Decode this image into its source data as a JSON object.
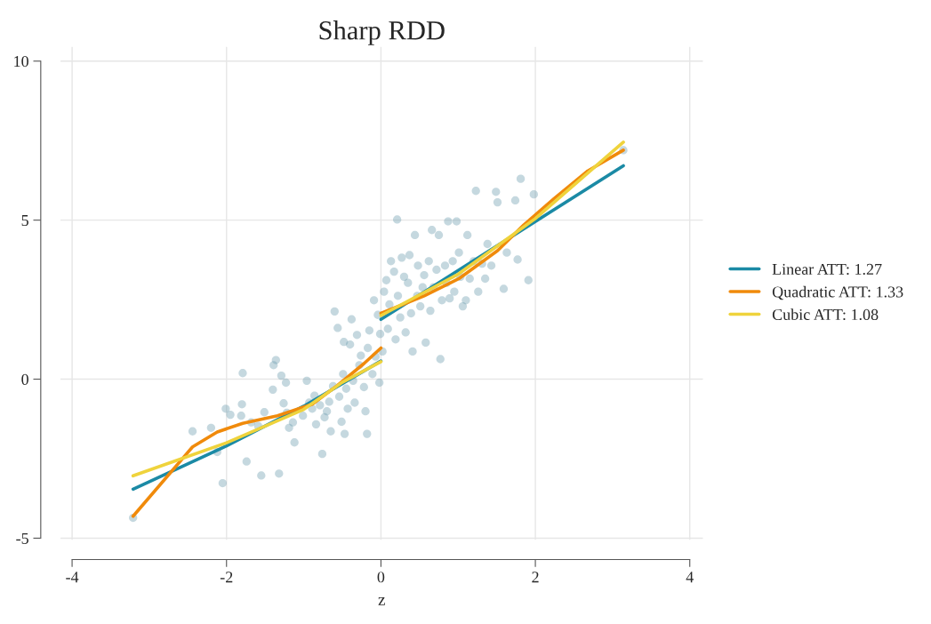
{
  "chart_data": {
    "type": "scatter",
    "title": "Sharp RDD",
    "xlabel": "z",
    "xlim": [
      -4.15,
      4.17
    ],
    "ylim": [
      -5.05,
      10.45
    ],
    "xticks": [
      -4,
      -2,
      0,
      2,
      4
    ],
    "yticks": [
      -5,
      0,
      5,
      10
    ],
    "grid": true,
    "legend": "right",
    "series": [
      {
        "color": "#6f9db0",
        "marker": "circle",
        "x": [
          -3.21,
          -2.44,
          -2.2,
          -2.12,
          -2.05,
          -2.01,
          -1.95,
          -1.81,
          -1.8,
          -1.79,
          -1.74,
          -1.68,
          -1.59,
          -1.55,
          -1.51,
          -1.4,
          -1.39,
          -1.36,
          -1.32,
          -1.29,
          -1.23,
          -1.26,
          -1.22,
          -1.19,
          -1.14,
          -1.12,
          -1.01,
          -0.96,
          -0.93,
          -0.89,
          -0.86,
          -0.84,
          -0.79,
          -0.76,
          -0.73,
          -0.7,
          -0.67,
          -0.65,
          -0.62,
          -0.6,
          -0.56,
          -0.54,
          -0.51,
          -0.49,
          -0.48,
          -0.47,
          -0.45,
          -0.43,
          -0.4,
          -0.38,
          -0.36,
          -0.34,
          -0.31,
          -0.28,
          -0.26,
          -0.22,
          -0.2,
          -0.18,
          -0.17,
          -0.15,
          -0.11,
          -0.09,
          -0.07,
          -0.04,
          -0.02,
          -0.01,
          0.02,
          0.04,
          0.07,
          0.09,
          0.11,
          0.13,
          0.17,
          0.19,
          0.21,
          0.22,
          0.25,
          0.27,
          0.3,
          0.32,
          0.35,
          0.37,
          0.39,
          0.41,
          0.44,
          0.47,
          0.48,
          0.51,
          0.54,
          0.56,
          0.58,
          0.62,
          0.64,
          0.66,
          0.68,
          0.72,
          0.75,
          0.77,
          0.79,
          0.83,
          0.85,
          0.87,
          0.89,
          0.93,
          0.95,
          0.98,
          1.01,
          1.03,
          1.06,
          1.1,
          1.12,
          1.15,
          1.2,
          1.23,
          1.26,
          1.31,
          1.35,
          1.38,
          1.43,
          1.49,
          1.51,
          1.59,
          1.63,
          1.74,
          1.77,
          1.81,
          1.91,
          1.98,
          3.14
        ],
        "values": [
          -4.36,
          -1.64,
          -1.53,
          -2.29,
          -3.27,
          -0.93,
          -1.12,
          -1.15,
          -0.79,
          0.19,
          -2.59,
          -1.36,
          -1.47,
          -3.03,
          -1.04,
          -0.33,
          0.44,
          0.6,
          -2.97,
          0.11,
          -0.11,
          -0.76,
          -1.06,
          -1.53,
          -1.36,
          -1.99,
          -1.15,
          -0.05,
          -0.74,
          -0.93,
          -0.52,
          -1.42,
          -0.82,
          -2.35,
          -1.2,
          -1.01,
          -0.71,
          -1.64,
          -0.22,
          2.13,
          1.61,
          -0.55,
          -1.34,
          0.16,
          1.17,
          -1.72,
          -0.3,
          -0.93,
          1.09,
          1.88,
          -0.05,
          -0.74,
          1.39,
          0.44,
          0.74,
          -0.25,
          -1.01,
          -1.72,
          0.98,
          1.53,
          0.16,
          2.48,
          0.71,
          2.02,
          -0.11,
          1.42,
          0.87,
          2.75,
          3.11,
          1.58,
          2.35,
          3.71,
          3.38,
          1.25,
          5.02,
          2.62,
          1.94,
          3.82,
          3.22,
          1.47,
          3.03,
          3.9,
          2.07,
          0.87,
          4.53,
          2.62,
          3.57,
          2.29,
          2.89,
          3.27,
          1.15,
          3.71,
          2.15,
          4.69,
          2.89,
          3.44,
          4.53,
          0.63,
          2.48,
          3.57,
          3.03,
          4.96,
          2.54,
          3.71,
          2.75,
          4.96,
          3.98,
          3.22,
          2.29,
          2.48,
          4.53,
          3.16,
          3.71,
          5.92,
          2.75,
          3.63,
          3.16,
          4.25,
          3.57,
          5.89,
          5.56,
          2.84,
          3.98,
          5.62,
          3.76,
          6.3,
          3.11,
          5.81,
          7.2
        ]
      },
      {
        "type": "line",
        "name": "Linear ATT: 1.27",
        "color": "#1b8aa5",
        "x": [
          -3.21,
          -2,
          -1,
          0,
          null,
          0,
          3.14
        ],
        "values": [
          -3.46,
          -2.1,
          -0.85,
          0.57,
          null,
          1.88,
          6.71
        ]
      },
      {
        "type": "line",
        "name": "Quadratic ATT: 1.33",
        "color": "#f08a0b",
        "x": [
          -3.21,
          -2.44,
          -2.12,
          -1.79,
          -1.34,
          -0.89,
          -0.56,
          -0.22,
          0,
          null,
          0,
          0.56,
          1.01,
          1.51,
          1.85,
          2.24,
          2.68,
          3.14
        ],
        "values": [
          -4.31,
          -2.13,
          -1.66,
          -1.39,
          -1.15,
          -0.79,
          -0.19,
          0.49,
          0.98,
          null,
          2.07,
          2.62,
          3.16,
          4.04,
          4.85,
          5.67,
          6.55,
          7.2
        ]
      },
      {
        "type": "line",
        "name": "Cubic ATT: 1.08",
        "color": "#efd33c",
        "x": [
          -3.21,
          -2,
          -1,
          -0.5,
          0,
          null,
          0,
          1,
          2,
          3.14
        ],
        "values": [
          -3.04,
          -2.0,
          -0.95,
          -0.1,
          0.55,
          null,
          2.0,
          3.3,
          5.05,
          7.45
        ]
      }
    ]
  }
}
